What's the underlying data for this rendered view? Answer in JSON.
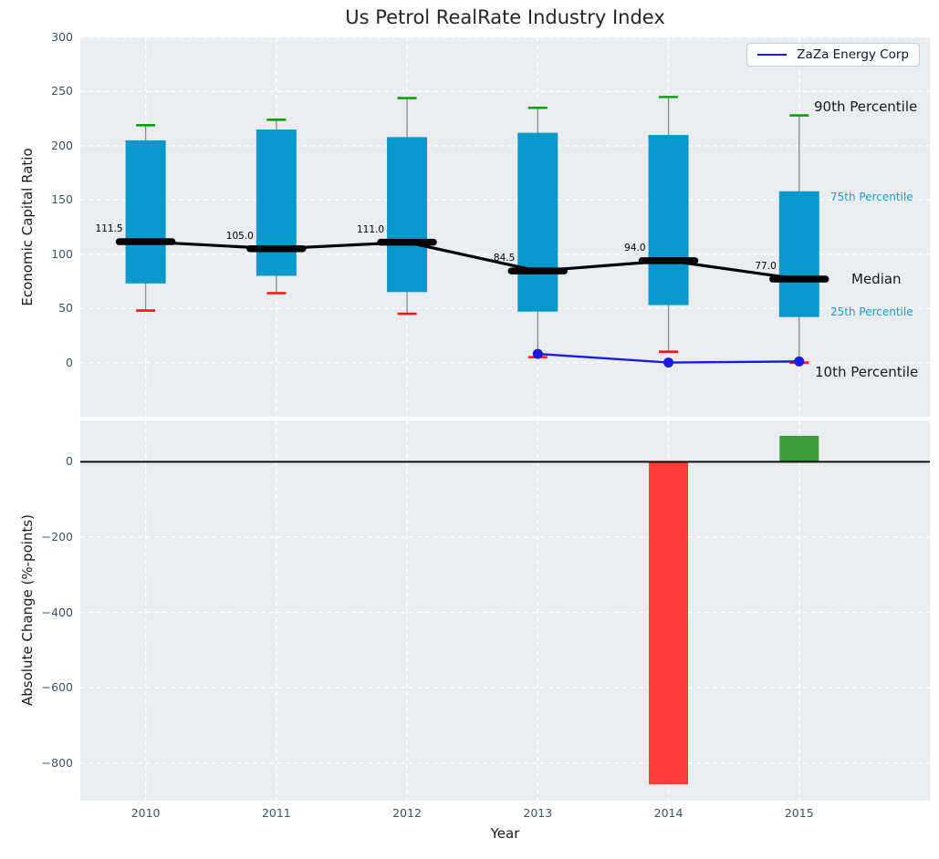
{
  "title": "Us Petrol RealRate Industry Index",
  "legend": {
    "label": "ZaZa Energy Corp"
  },
  "right_labels": [
    {
      "text": "90th Percentile",
      "style": "black"
    },
    {
      "text": "75th Percentile",
      "style": "teal"
    },
    {
      "text": "Median",
      "style": "black"
    },
    {
      "text": "25th Percentile",
      "style": "teal"
    },
    {
      "text": "10th Percentile",
      "style": "black"
    }
  ],
  "colors": {
    "box": "#0898cb",
    "median": "#000000",
    "whisker": "#8a8a8a",
    "cap_top": "#0da00d",
    "cap_bottom": "#ff1212",
    "zaza_line": "#1a1ae6",
    "bar_negative": "#fa3c3c",
    "bar_positive": "#3a9b3c",
    "plot_bg": "#e9edf0",
    "grid": "#ffffff",
    "tick_text": "#3d5467",
    "teal_label": "#189fd1",
    "zero_line": "#000000"
  },
  "chart_data": [
    {
      "type": "boxplot",
      "title": "Us Petrol RealRate Industry Index",
      "xlabel": "Year",
      "ylabel": "Economic Capital Ratio",
      "categories": [
        "2010",
        "2011",
        "2012",
        "2013",
        "2014",
        "2015"
      ],
      "ylim": [
        -50,
        300
      ],
      "yticks": [
        0,
        50,
        100,
        150,
        200,
        250,
        300
      ],
      "grid": true,
      "legend_position": "upper right",
      "series": [
        {
          "name": "10th Percentile",
          "values": [
            48,
            64,
            45,
            5,
            10,
            0
          ]
        },
        {
          "name": "25th Percentile",
          "values": [
            73,
            80,
            65,
            47,
            53,
            42
          ]
        },
        {
          "name": "Median",
          "values": [
            111.5,
            105.0,
            111.0,
            84.5,
            94.0,
            77.0
          ]
        },
        {
          "name": "75th Percentile",
          "values": [
            205,
            215,
            208,
            212,
            210,
            158
          ]
        },
        {
          "name": "90th Percentile",
          "values": [
            219,
            224,
            244,
            235,
            245,
            228
          ]
        }
      ],
      "median_labels": [
        "111.5",
        "105.0",
        "111.0",
        "84.5",
        "94.0",
        "77.0"
      ],
      "overlay_line": {
        "name": "ZaZa Energy Corp",
        "x": [
          "2013",
          "2014",
          "2015"
        ],
        "values": [
          8,
          0,
          1
        ]
      }
    },
    {
      "type": "bar",
      "xlabel": "Year",
      "ylabel": "Absolute Change (%-points)",
      "categories": [
        "2010",
        "2011",
        "2012",
        "2013",
        "2014",
        "2015"
      ],
      "values": [
        null,
        null,
        null,
        null,
        -857,
        69
      ],
      "ylim": [
        -900,
        110
      ],
      "yticks": [
        0,
        -200,
        -400,
        -600,
        -800
      ],
      "grid": true,
      "zero_line": true
    }
  ]
}
